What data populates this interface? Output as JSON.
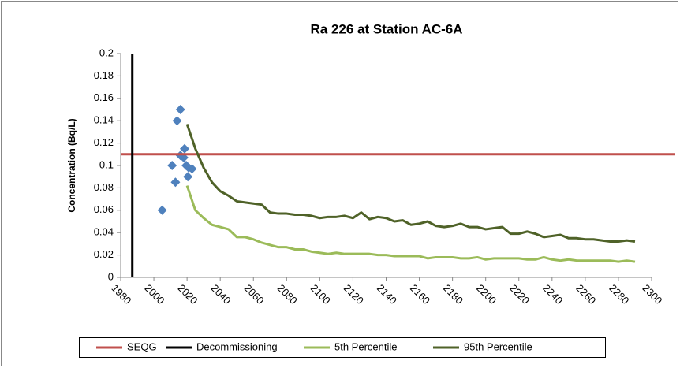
{
  "chart_data": {
    "type": "scatter",
    "title": "Ra 226 at Station AC-6A",
    "y_label": "Concentration (Bq/L)",
    "xlim": [
      1980,
      2300
    ],
    "xticks": [
      1980,
      2000,
      2020,
      2040,
      2060,
      2080,
      2100,
      2120,
      2140,
      2160,
      2180,
      2200,
      2220,
      2240,
      2260,
      2280,
      2300
    ],
    "ylim": [
      0,
      0.2
    ],
    "yticks": [
      0,
      0.02,
      0.04,
      0.06,
      0.08,
      0.1,
      0.12,
      0.14,
      0.16,
      0.18,
      0.2
    ],
    "series": [
      {
        "color": "#4f81bd",
        "x": [
          2005,
          2011,
          2013,
          2014,
          2016,
          2016,
          2018,
          2018.5,
          2019.5,
          2020.5,
          2021,
          2023
        ],
        "values": [
          0.06,
          0.1,
          0.085,
          0.14,
          0.15,
          0.109,
          0.107,
          0.115,
          0.1,
          0.09,
          0.098,
          0.097
        ]
      },
      {
        "name": "SEQG",
        "color": "#c0504d",
        "type": "hline",
        "value": 0.11
      },
      {
        "name": "Decommissioning",
        "color": "#000000",
        "type": "vline",
        "value": 1987
      },
      {
        "name": "5th Percentile",
        "color": "#9bbb59",
        "type": "line",
        "x": [
          2020,
          2025,
          2030,
          2035,
          2040,
          2045,
          2050,
          2055,
          2060,
          2065,
          2070,
          2075,
          2080,
          2085,
          2090,
          2095,
          2100,
          2105,
          2110,
          2115,
          2120,
          2125,
          2130,
          2135,
          2140,
          2145,
          2150,
          2155,
          2160,
          2165,
          2170,
          2175,
          2180,
          2185,
          2190,
          2195,
          2200,
          2205,
          2210,
          2215,
          2220,
          2225,
          2230,
          2235,
          2240,
          2245,
          2250,
          2255,
          2260,
          2265,
          2270,
          2275,
          2280,
          2285,
          2290
        ],
        "values": [
          0.082,
          0.06,
          0.053,
          0.047,
          0.045,
          0.043,
          0.036,
          0.036,
          0.034,
          0.031,
          0.029,
          0.027,
          0.027,
          0.025,
          0.025,
          0.023,
          0.022,
          0.021,
          0.022,
          0.021,
          0.021,
          0.021,
          0.021,
          0.02,
          0.02,
          0.019,
          0.019,
          0.019,
          0.019,
          0.017,
          0.018,
          0.018,
          0.018,
          0.017,
          0.017,
          0.018,
          0.016,
          0.017,
          0.017,
          0.017,
          0.017,
          0.016,
          0.016,
          0.018,
          0.016,
          0.015,
          0.016,
          0.015,
          0.015,
          0.015,
          0.015,
          0.015,
          0.014,
          0.015,
          0.014
        ]
      },
      {
        "name": "95th Percentile",
        "color": "#4f6228",
        "type": "line",
        "x": [
          2020,
          2025,
          2030,
          2035,
          2040,
          2045,
          2050,
          2055,
          2060,
          2065,
          2070,
          2075,
          2080,
          2085,
          2090,
          2095,
          2100,
          2105,
          2110,
          2115,
          2120,
          2125,
          2130,
          2135,
          2140,
          2145,
          2150,
          2155,
          2160,
          2165,
          2170,
          2175,
          2180,
          2185,
          2190,
          2195,
          2200,
          2205,
          2210,
          2215,
          2220,
          2225,
          2230,
          2235,
          2240,
          2245,
          2250,
          2255,
          2260,
          2265,
          2270,
          2275,
          2280,
          2285,
          2290
        ],
        "values": [
          0.137,
          0.115,
          0.098,
          0.085,
          0.077,
          0.073,
          0.068,
          0.067,
          0.066,
          0.065,
          0.058,
          0.057,
          0.057,
          0.056,
          0.056,
          0.055,
          0.053,
          0.054,
          0.054,
          0.055,
          0.053,
          0.058,
          0.052,
          0.054,
          0.053,
          0.05,
          0.051,
          0.047,
          0.048,
          0.05,
          0.046,
          0.045,
          0.046,
          0.048,
          0.045,
          0.045,
          0.043,
          0.044,
          0.045,
          0.039,
          0.039,
          0.041,
          0.039,
          0.036,
          0.037,
          0.038,
          0.035,
          0.035,
          0.034,
          0.034,
          0.033,
          0.032,
          0.032,
          0.033,
          0.032
        ]
      }
    ]
  }
}
